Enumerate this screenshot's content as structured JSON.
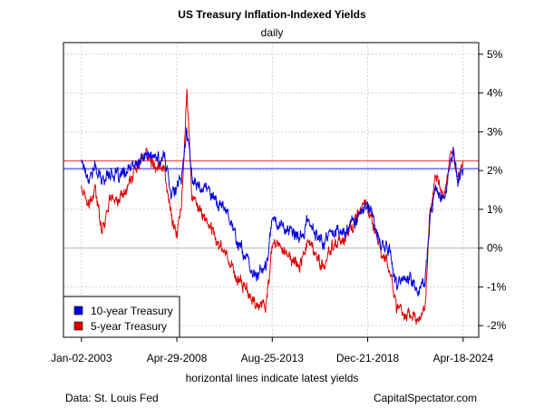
{
  "chart_data": {
    "type": "line",
    "title": "US Treasury Inflation-Indexed Yields",
    "subtitle": "daily",
    "x_tick_labels": [
      "Jan-02-2003",
      "Apr-29-2008",
      "Aug-25-2013",
      "Dec-21-2018",
      "Apr-18-2024"
    ],
    "x_tick_dates": [
      "2003-01-02",
      "2008-04-29",
      "2013-08-25",
      "2018-12-21",
      "2024-04-18"
    ],
    "xlim": [
      "2002-01-01",
      "2025-03-01"
    ],
    "y_tick_labels": [
      "-2%",
      "-1%",
      "0%",
      "1%",
      "2%",
      "3%",
      "4%",
      "5%"
    ],
    "y_ticks": [
      -2,
      -1,
      0,
      1,
      2,
      3,
      4,
      5
    ],
    "ylim": [
      -2.3,
      5.3
    ],
    "y_axis_side": "right",
    "grid": true,
    "note": "horizontal lines indicate latest yields",
    "reference_lines": [
      {
        "y": 2.25,
        "color": "#e03030"
      },
      {
        "y": 2.05,
        "color": "#2020e0"
      }
    ],
    "legend_position": "bottom-left",
    "series": [
      {
        "name": "10-year Treasury",
        "color": "#0000dd",
        "points": [
          [
            "2003-01-02",
            2.3
          ],
          [
            "2003-06-01",
            1.8
          ],
          [
            "2003-10-01",
            2.1
          ],
          [
            "2004-03-01",
            1.7
          ],
          [
            "2004-08-01",
            2.0
          ],
          [
            "2005-02-01",
            1.8
          ],
          [
            "2005-09-01",
            2.0
          ],
          [
            "2006-03-01",
            2.2
          ],
          [
            "2006-09-01",
            2.4
          ],
          [
            "2007-03-01",
            2.3
          ],
          [
            "2007-09-01",
            2.3
          ],
          [
            "2008-01-01",
            1.5
          ],
          [
            "2008-04-29",
            1.5
          ],
          [
            "2008-08-01",
            1.8
          ],
          [
            "2008-11-20",
            3.1
          ],
          [
            "2009-03-01",
            1.8
          ],
          [
            "2009-09-01",
            1.6
          ],
          [
            "2010-03-01",
            1.5
          ],
          [
            "2010-09-01",
            1.1
          ],
          [
            "2011-03-01",
            1.0
          ],
          [
            "2011-09-01",
            0.2
          ],
          [
            "2012-03-01",
            -0.2
          ],
          [
            "2012-07-01",
            -0.7
          ],
          [
            "2013-01-01",
            -0.6
          ],
          [
            "2013-05-01",
            -0.5
          ],
          [
            "2013-09-01",
            0.8
          ],
          [
            "2014-03-01",
            0.6
          ],
          [
            "2014-09-01",
            0.4
          ],
          [
            "2015-03-01",
            0.2
          ],
          [
            "2015-09-01",
            0.7
          ],
          [
            "2016-03-01",
            0.3
          ],
          [
            "2016-07-01",
            0.1
          ],
          [
            "2017-01-01",
            0.5
          ],
          [
            "2017-09-01",
            0.4
          ],
          [
            "2018-03-01",
            0.7
          ],
          [
            "2018-11-01",
            1.1
          ],
          [
            "2019-03-01",
            0.9
          ],
          [
            "2019-09-01",
            0.1
          ],
          [
            "2020-03-01",
            0.0
          ],
          [
            "2020-08-01",
            -1.0
          ],
          [
            "2021-03-01",
            -0.7
          ],
          [
            "2021-11-01",
            -1.1
          ],
          [
            "2022-03-01",
            -0.9
          ],
          [
            "2022-06-01",
            0.6
          ],
          [
            "2022-10-01",
            1.7
          ],
          [
            "2023-03-01",
            1.2
          ],
          [
            "2023-10-01",
            2.4
          ],
          [
            "2024-01-01",
            1.8
          ],
          [
            "2024-04-18",
            2.05
          ]
        ]
      },
      {
        "name": "5-year Treasury",
        "color": "#dd0000",
        "points": [
          [
            "2003-01-02",
            1.6
          ],
          [
            "2003-06-01",
            1.0
          ],
          [
            "2003-10-01",
            1.5
          ],
          [
            "2004-03-01",
            0.5
          ],
          [
            "2004-08-01",
            1.3
          ],
          [
            "2005-02-01",
            1.2
          ],
          [
            "2005-09-01",
            1.7
          ],
          [
            "2006-03-01",
            2.1
          ],
          [
            "2006-09-01",
            2.5
          ],
          [
            "2007-03-01",
            2.2
          ],
          [
            "2007-09-01",
            2.0
          ],
          [
            "2008-01-01",
            0.9
          ],
          [
            "2008-04-29",
            0.3
          ],
          [
            "2008-08-01",
            1.0
          ],
          [
            "2008-11-20",
            4.2
          ],
          [
            "2009-03-01",
            1.3
          ],
          [
            "2009-09-01",
            0.9
          ],
          [
            "2010-03-01",
            0.6
          ],
          [
            "2010-09-01",
            0.1
          ],
          [
            "2011-03-01",
            -0.2
          ],
          [
            "2011-09-01",
            -0.8
          ],
          [
            "2012-03-01",
            -1.0
          ],
          [
            "2012-07-01",
            -1.3
          ],
          [
            "2013-01-01",
            -1.5
          ],
          [
            "2013-05-01",
            -1.4
          ],
          [
            "2013-09-01",
            0.1
          ],
          [
            "2014-03-01",
            0.0
          ],
          [
            "2014-09-01",
            -0.3
          ],
          [
            "2015-03-01",
            -0.4
          ],
          [
            "2015-09-01",
            0.2
          ],
          [
            "2016-03-01",
            -0.3
          ],
          [
            "2016-07-01",
            -0.5
          ],
          [
            "2017-01-01",
            0.1
          ],
          [
            "2017-09-01",
            0.2
          ],
          [
            "2018-03-01",
            0.6
          ],
          [
            "2018-11-01",
            1.2
          ],
          [
            "2019-03-01",
            0.8
          ],
          [
            "2019-09-01",
            0.0
          ],
          [
            "2020-03-01",
            -0.5
          ],
          [
            "2020-08-01",
            -1.5
          ],
          [
            "2021-03-01",
            -1.7
          ],
          [
            "2021-11-01",
            -1.9
          ],
          [
            "2022-03-01",
            -1.6
          ],
          [
            "2022-06-01",
            0.7
          ],
          [
            "2022-10-01",
            1.8
          ],
          [
            "2023-03-01",
            1.3
          ],
          [
            "2023-10-01",
            2.6
          ],
          [
            "2024-01-01",
            1.7
          ],
          [
            "2024-04-18",
            2.25
          ]
        ]
      }
    ]
  },
  "footer": {
    "source": "Data: St. Louis Fed",
    "credit": "CapitalSpectator.com"
  }
}
